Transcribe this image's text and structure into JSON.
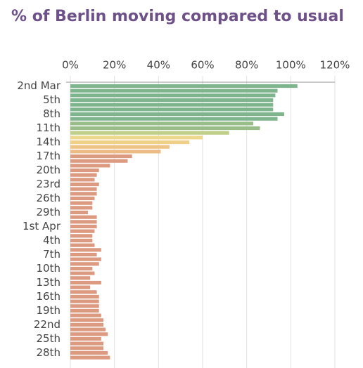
{
  "chart_data": {
    "type": "barh",
    "title": "% of Berlin moving compared to usual",
    "categories": [
      "2nd Mar",
      null,
      null,
      "5th",
      null,
      null,
      "8th",
      null,
      null,
      "11th",
      null,
      null,
      "14th",
      null,
      null,
      "17th",
      null,
      null,
      "20th",
      null,
      null,
      "23rd",
      null,
      null,
      "26th",
      null,
      null,
      "29th",
      null,
      null,
      "1st Apr",
      null,
      null,
      "4th",
      null,
      null,
      "7th",
      null,
      null,
      "10th",
      null,
      null,
      "13th",
      null,
      null,
      "16th",
      null,
      null,
      "19th",
      null,
      null,
      "22nd",
      null,
      null,
      "25th",
      null,
      null,
      "28th",
      null
    ],
    "values": [
      103,
      94,
      93,
      92,
      92,
      92,
      97,
      94,
      83,
      86,
      72,
      60,
      54,
      45,
      41,
      28,
      26,
      18,
      13,
      12,
      11,
      13,
      12,
      12,
      11,
      10,
      10,
      8,
      12,
      12,
      12,
      11,
      10,
      10,
      11,
      14,
      12,
      14,
      13,
      10,
      11,
      9,
      14,
      9,
      12,
      13,
      13,
      13,
      13,
      14,
      15,
      15,
      16,
      17,
      14,
      15,
      15,
      17,
      18
    ],
    "colors": [
      "#7fb58c",
      "#7fb58c",
      "#7fb58c",
      "#7fb58c",
      "#7fb58c",
      "#7fb58c",
      "#7fb58c",
      "#7fb58c",
      "#98bd88",
      "#98bd88",
      "#bfcf8a",
      "#ecd88c",
      "#f0cf88",
      "#eec486",
      "#ebba85",
      "#dc9a80",
      "#dc9a80",
      "#dc9a80",
      "#dc9a80",
      "#dc9a80",
      "#dc9a80",
      "#dc9a80",
      "#dc9a80",
      "#dc9a80",
      "#dc9a80",
      "#dc9a80",
      "#dc9a80",
      "#dc9a80",
      "#dc9a80",
      "#dc9a80",
      "#dc9a80",
      "#dc9a80",
      "#dc9a80",
      "#dc9a80",
      "#dc9a80",
      "#dc9a80",
      "#dc9a80",
      "#dc9a80",
      "#dc9a80",
      "#dc9a80",
      "#dc9a80",
      "#dc9a80",
      "#dc9a80",
      "#dc9a80",
      "#dc9a80",
      "#dc9a80",
      "#dc9a80",
      "#dc9a80",
      "#dc9a80",
      "#dc9a80",
      "#dc9a80",
      "#dc9a80",
      "#dc9a80",
      "#dc9a80",
      "#dc9a80",
      "#dc9a80",
      "#dc9a80",
      "#dc9a80",
      "#dc9a80"
    ],
    "xlim": [
      0,
      120
    ],
    "xticks": [
      {
        "value": 0,
        "label": "0%"
      },
      {
        "value": 20,
        "label": "20%"
      },
      {
        "value": 40,
        "label": "40%"
      },
      {
        "value": 60,
        "label": "60%"
      },
      {
        "value": 80,
        "label": "80%"
      },
      {
        "value": 100,
        "label": "100%"
      },
      {
        "value": 120,
        "label": "120%"
      }
    ],
    "grid": true
  }
}
